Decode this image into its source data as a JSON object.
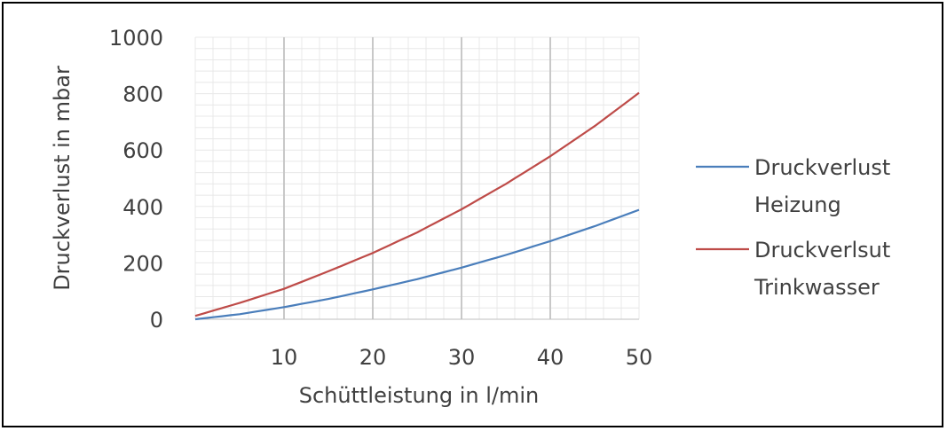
{
  "chart_data": {
    "type": "line",
    "title": "",
    "xlabel": "Schüttleistung in l/min",
    "ylabel": "Druckverlust in mbar",
    "xlim": [
      0,
      50
    ],
    "ylim": [
      0,
      1000
    ],
    "x_ticks": [
      "10",
      "20",
      "30",
      "40",
      "50"
    ],
    "y_ticks": [
      "0",
      "200",
      "400",
      "600",
      "800",
      "1000"
    ],
    "grid": true,
    "legend_position": "right",
    "series": [
      {
        "name_lines": [
          "Druckverlust",
          "Heizung"
        ],
        "color": "#4a7ebb",
        "x": [
          0,
          5,
          10,
          15,
          20,
          25,
          30,
          35,
          40,
          45,
          50
        ],
        "y": [
          0,
          18,
          43,
          72,
          106,
          142,
          183,
          228,
          277,
          330,
          388
        ]
      },
      {
        "name_lines": [
          "Druckverlsut",
          "Trinkwasser"
        ],
        "color": "#be4b48",
        "x": [
          0,
          5,
          10,
          15,
          20,
          25,
          30,
          35,
          40,
          45,
          50
        ],
        "y": [
          12,
          58,
          108,
          170,
          235,
          308,
          390,
          480,
          578,
          685,
          803
        ]
      }
    ]
  }
}
